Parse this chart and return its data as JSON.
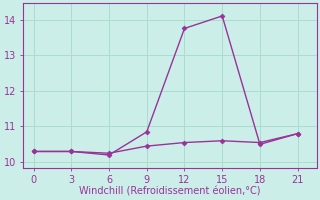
{
  "xlabel": "Windchill (Refroidissement éolien,°C)",
  "line1_x": [
    0,
    3,
    6,
    9,
    12,
    15,
    18,
    21
  ],
  "line1_y": [
    10.3,
    10.3,
    10.2,
    10.85,
    13.75,
    14.1,
    10.5,
    10.8
  ],
  "line2_x": [
    0,
    3,
    6,
    9,
    12,
    15,
    18,
    21
  ],
  "line2_y": [
    10.3,
    10.3,
    10.25,
    10.45,
    10.55,
    10.6,
    10.55,
    10.8
  ],
  "line_color": "#993399",
  "bg_color": "#cceee8",
  "grid_color": "#aaddcc",
  "xlim": [
    -0.8,
    22.5
  ],
  "ylim": [
    9.85,
    14.45
  ],
  "xticks": [
    0,
    3,
    6,
    9,
    12,
    15,
    18,
    21
  ],
  "yticks": [
    10,
    11,
    12,
    13,
    14
  ],
  "markersize": 2.5,
  "linewidth": 1.0,
  "tick_labelsize": 7,
  "xlabel_fontsize": 7
}
